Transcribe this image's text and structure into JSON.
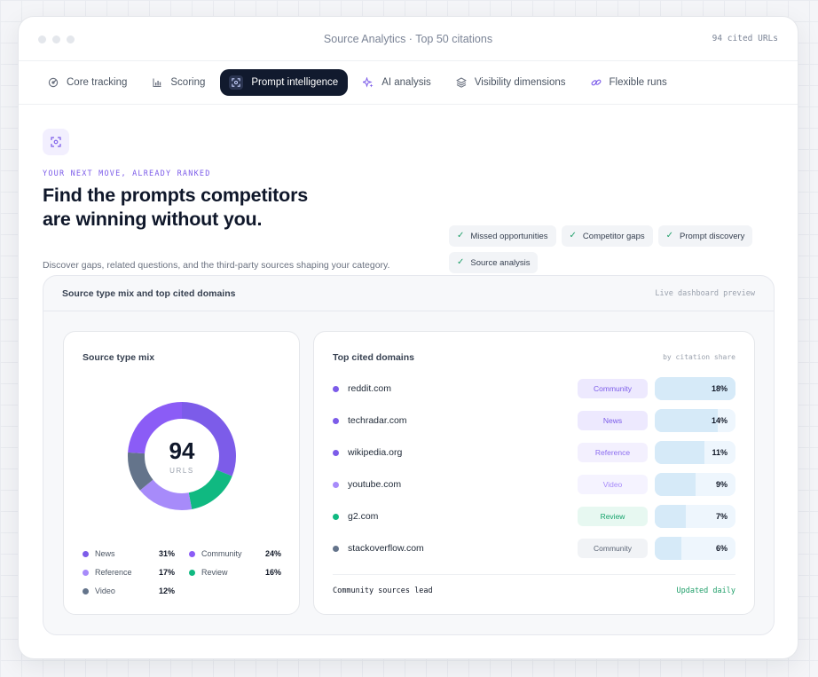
{
  "window": {
    "title": "Source Analytics · Top 50 citations",
    "count_label": "94 cited URLs"
  },
  "tabs": [
    {
      "label": "Core tracking",
      "icon": "radar-icon",
      "active": false
    },
    {
      "label": "Scoring",
      "icon": "bar-chart-icon",
      "active": false
    },
    {
      "label": "Prompt intelligence",
      "icon": "scan-icon",
      "active": true
    },
    {
      "label": "AI analysis",
      "icon": "sparkle-icon",
      "active": false
    },
    {
      "label": "Visibility dimensions",
      "icon": "layers-icon",
      "active": false
    },
    {
      "label": "Flexible runs",
      "icon": "link-icon",
      "active": false
    }
  ],
  "hero": {
    "icon": "scan-icon",
    "eyebrow": "YOUR NEXT MOVE, ALREADY RANKED",
    "headline": "Find the prompts competitors are winning without you.",
    "subtext": "Discover gaps, related questions, and the third-party sources shaping your category.",
    "chips": [
      "Missed opportunities",
      "Competitor gaps",
      "Prompt discovery",
      "Source analysis"
    ]
  },
  "dashboard": {
    "title": "Source type mix and top cited domains",
    "note": "Live dashboard preview"
  },
  "mix": {
    "title": "Source type mix",
    "total": "94",
    "unit": "URLS",
    "items": [
      {
        "label": "News",
        "pct": "31%",
        "value": 31,
        "color": "#7c5ce9"
      },
      {
        "label": "Community",
        "pct": "24%",
        "value": 24,
        "color": "#8b5cf6"
      },
      {
        "label": "Reference",
        "pct": "17%",
        "value": 17,
        "color": "#a78bfa"
      },
      {
        "label": "Review",
        "pct": "16%",
        "value": 16,
        "color": "#10b981"
      },
      {
        "label": "Video",
        "pct": "12%",
        "value": 12,
        "color": "#64748b"
      }
    ]
  },
  "domains": {
    "title": "Top cited domains",
    "hint": "by citation share",
    "rows": [
      {
        "name": "reddit.com",
        "tag": "Community",
        "pct": "18%",
        "share": 18,
        "dot": "#7c5ce9",
        "tag_bg": "#ede9fe",
        "tag_fg": "#7c5ce9"
      },
      {
        "name": "techradar.com",
        "tag": "News",
        "pct": "14%",
        "share": 14,
        "dot": "#7c5ce9",
        "tag_bg": "#ede9fe",
        "tag_fg": "#7c5ce9"
      },
      {
        "name": "wikipedia.org",
        "tag": "Reference",
        "pct": "11%",
        "share": 11,
        "dot": "#7c5ce9",
        "tag_bg": "#f3f0fe",
        "tag_fg": "#8b6cf0"
      },
      {
        "name": "youtube.com",
        "tag": "Video",
        "pct": "9%",
        "share": 9,
        "dot": "#a78bfa",
        "tag_bg": "#f5f3ff",
        "tag_fg": "#a78bfa"
      },
      {
        "name": "g2.com",
        "tag": "Review",
        "pct": "7%",
        "share": 7,
        "dot": "#10b981",
        "tag_bg": "#e7f8f1",
        "tag_fg": "#16a36c"
      },
      {
        "name": "stackoverflow.com",
        "tag": "Community",
        "pct": "6%",
        "share": 6,
        "dot": "#64748b",
        "tag_bg": "#f1f3f6",
        "tag_fg": "#5b6576"
      }
    ],
    "footer_left": "Community sources lead",
    "footer_right": "Updated daily"
  }
}
